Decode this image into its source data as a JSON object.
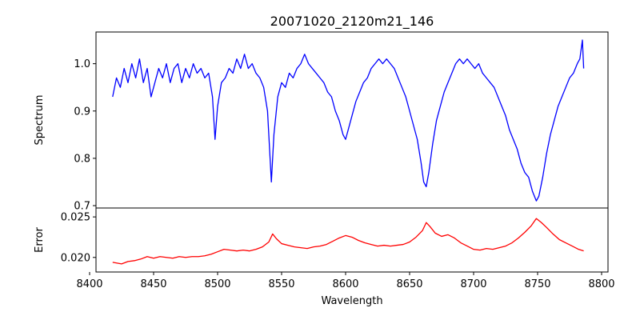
{
  "chart_data": {
    "type": "line",
    "title": "20071020_2120m21_146",
    "xlabel": "Wavelength",
    "xlim": [
      8405,
      8805
    ],
    "x_ticks": [
      8400,
      8450,
      8500,
      8550,
      8600,
      8650,
      8700,
      8750,
      8800
    ],
    "panels": [
      {
        "name": "spectrum-panel",
        "ylabel": "Spectrum",
        "ylim": [
          0.695,
          1.067
        ],
        "y_ticks": [
          0.7,
          0.8,
          0.9,
          1.0
        ],
        "y_tick_labels": [
          "0.7",
          "0.8",
          "0.9",
          "1.0"
        ],
        "series": [
          {
            "color": "#0000ff",
            "x_start": 8418,
            "x_end": 8786,
            "points": [
              [
                8418,
                0.93
              ],
              [
                8421,
                0.97
              ],
              [
                8424,
                0.95
              ],
              [
                8427,
                0.99
              ],
              [
                8430,
                0.96
              ],
              [
                8433,
                1.0
              ],
              [
                8436,
                0.97
              ],
              [
                8439,
                1.01
              ],
              [
                8442,
                0.96
              ],
              [
                8445,
                0.99
              ],
              [
                8448,
                0.93
              ],
              [
                8451,
                0.96
              ],
              [
                8454,
                0.99
              ],
              [
                8457,
                0.97
              ],
              [
                8460,
                1.0
              ],
              [
                8463,
                0.96
              ],
              [
                8466,
                0.99
              ],
              [
                8469,
                1.0
              ],
              [
                8472,
                0.96
              ],
              [
                8475,
                0.99
              ],
              [
                8478,
                0.97
              ],
              [
                8481,
                1.0
              ],
              [
                8484,
                0.98
              ],
              [
                8487,
                0.99
              ],
              [
                8490,
                0.97
              ],
              [
                8493,
                0.98
              ],
              [
                8496,
                0.93
              ],
              [
                8498,
                0.84
              ],
              [
                8500,
                0.91
              ],
              [
                8503,
                0.96
              ],
              [
                8506,
                0.97
              ],
              [
                8509,
                0.99
              ],
              [
                8512,
                0.98
              ],
              [
                8515,
                1.01
              ],
              [
                8518,
                0.99
              ],
              [
                8521,
                1.02
              ],
              [
                8524,
                0.99
              ],
              [
                8527,
                1.0
              ],
              [
                8530,
                0.98
              ],
              [
                8533,
                0.97
              ],
              [
                8536,
                0.95
              ],
              [
                8539,
                0.9
              ],
              [
                8541,
                0.8
              ],
              [
                8542,
                0.75
              ],
              [
                8544,
                0.85
              ],
              [
                8547,
                0.93
              ],
              [
                8550,
                0.96
              ],
              [
                8553,
                0.95
              ],
              [
                8556,
                0.98
              ],
              [
                8559,
                0.97
              ],
              [
                8562,
                0.99
              ],
              [
                8565,
                1.0
              ],
              [
                8568,
                1.02
              ],
              [
                8571,
                1.0
              ],
              [
                8574,
                0.99
              ],
              [
                8577,
                0.98
              ],
              [
                8580,
                0.97
              ],
              [
                8583,
                0.96
              ],
              [
                8586,
                0.94
              ],
              [
                8589,
                0.93
              ],
              [
                8592,
                0.9
              ],
              [
                8595,
                0.88
              ],
              [
                8598,
                0.85
              ],
              [
                8600,
                0.84
              ],
              [
                8602,
                0.86
              ],
              [
                8605,
                0.89
              ],
              [
                8608,
                0.92
              ],
              [
                8611,
                0.94
              ],
              [
                8614,
                0.96
              ],
              [
                8617,
                0.97
              ],
              [
                8620,
                0.99
              ],
              [
                8623,
                1.0
              ],
              [
                8626,
                1.01
              ],
              [
                8629,
                1.0
              ],
              [
                8632,
                1.01
              ],
              [
                8635,
                1.0
              ],
              [
                8638,
                0.99
              ],
              [
                8641,
                0.97
              ],
              [
                8644,
                0.95
              ],
              [
                8647,
                0.93
              ],
              [
                8650,
                0.9
              ],
              [
                8653,
                0.87
              ],
              [
                8656,
                0.84
              ],
              [
                8659,
                0.79
              ],
              [
                8661,
                0.75
              ],
              [
                8663,
                0.74
              ],
              [
                8665,
                0.77
              ],
              [
                8668,
                0.83
              ],
              [
                8671,
                0.88
              ],
              [
                8674,
                0.91
              ],
              [
                8677,
                0.94
              ],
              [
                8680,
                0.96
              ],
              [
                8683,
                0.98
              ],
              [
                8686,
                1.0
              ],
              [
                8689,
                1.01
              ],
              [
                8692,
                1.0
              ],
              [
                8695,
                1.01
              ],
              [
                8698,
                1.0
              ],
              [
                8701,
                0.99
              ],
              [
                8704,
                1.0
              ],
              [
                8707,
                0.98
              ],
              [
                8710,
                0.97
              ],
              [
                8713,
                0.96
              ],
              [
                8716,
                0.95
              ],
              [
                8719,
                0.93
              ],
              [
                8722,
                0.91
              ],
              [
                8725,
                0.89
              ],
              [
                8728,
                0.86
              ],
              [
                8731,
                0.84
              ],
              [
                8734,
                0.82
              ],
              [
                8737,
                0.79
              ],
              [
                8740,
                0.77
              ],
              [
                8743,
                0.76
              ],
              [
                8746,
                0.73
              ],
              [
                8749,
                0.71
              ],
              [
                8751,
                0.72
              ],
              [
                8754,
                0.76
              ],
              [
                8757,
                0.81
              ],
              [
                8760,
                0.85
              ],
              [
                8763,
                0.88
              ],
              [
                8766,
                0.91
              ],
              [
                8769,
                0.93
              ],
              [
                8772,
                0.95
              ],
              [
                8775,
                0.97
              ],
              [
                8778,
                0.98
              ],
              [
                8781,
                1.0
              ],
              [
                8783,
                1.01
              ],
              [
                8785,
                1.05
              ],
              [
                8786,
                0.99
              ]
            ]
          }
        ]
      },
      {
        "name": "error-panel",
        "ylabel": "Error",
        "ylim": [
          0.0182,
          0.0261
        ],
        "y_ticks": [
          0.02,
          0.025
        ],
        "y_tick_labels": [
          "0.020",
          "0.025"
        ],
        "series": [
          {
            "color": "#ff0000",
            "x_start": 8418,
            "x_end": 8786,
            "points": [
              [
                8418,
                0.0194
              ],
              [
                8425,
                0.0192
              ],
              [
                8430,
                0.0195
              ],
              [
                8435,
                0.0196
              ],
              [
                8440,
                0.0198
              ],
              [
                8445,
                0.0201
              ],
              [
                8450,
                0.0199
              ],
              [
                8455,
                0.0201
              ],
              [
                8460,
                0.02
              ],
              [
                8465,
                0.0199
              ],
              [
                8470,
                0.0201
              ],
              [
                8475,
                0.02
              ],
              [
                8480,
                0.0201
              ],
              [
                8485,
                0.0201
              ],
              [
                8490,
                0.0202
              ],
              [
                8495,
                0.0204
              ],
              [
                8500,
                0.0207
              ],
              [
                8505,
                0.021
              ],
              [
                8510,
                0.0209
              ],
              [
                8515,
                0.0208
              ],
              [
                8520,
                0.0209
              ],
              [
                8525,
                0.0208
              ],
              [
                8530,
                0.021
              ],
              [
                8535,
                0.0213
              ],
              [
                8540,
                0.0219
              ],
              [
                8543,
                0.0229
              ],
              [
                8546,
                0.0223
              ],
              [
                8550,
                0.0217
              ],
              [
                8555,
                0.0215
              ],
              [
                8560,
                0.0213
              ],
              [
                8565,
                0.0212
              ],
              [
                8570,
                0.0211
              ],
              [
                8575,
                0.0213
              ],
              [
                8580,
                0.0214
              ],
              [
                8585,
                0.0216
              ],
              [
                8590,
                0.022
              ],
              [
                8595,
                0.0224
              ],
              [
                8600,
                0.0227
              ],
              [
                8605,
                0.0225
              ],
              [
                8610,
                0.0221
              ],
              [
                8615,
                0.0218
              ],
              [
                8620,
                0.0216
              ],
              [
                8625,
                0.0214
              ],
              [
                8630,
                0.0215
              ],
              [
                8635,
                0.0214
              ],
              [
                8640,
                0.0215
              ],
              [
                8645,
                0.0216
              ],
              [
                8650,
                0.0219
              ],
              [
                8655,
                0.0225
              ],
              [
                8660,
                0.0233
              ],
              [
                8663,
                0.0243
              ],
              [
                8666,
                0.0238
              ],
              [
                8670,
                0.023
              ],
              [
                8675,
                0.0226
              ],
              [
                8680,
                0.0228
              ],
              [
                8685,
                0.0224
              ],
              [
                8690,
                0.0218
              ],
              [
                8695,
                0.0214
              ],
              [
                8700,
                0.021
              ],
              [
                8705,
                0.0209
              ],
              [
                8710,
                0.0211
              ],
              [
                8715,
                0.021
              ],
              [
                8720,
                0.0212
              ],
              [
                8725,
                0.0214
              ],
              [
                8730,
                0.0218
              ],
              [
                8735,
                0.0224
              ],
              [
                8740,
                0.0231
              ],
              [
                8745,
                0.0239
              ],
              [
                8749,
                0.0248
              ],
              [
                8753,
                0.0243
              ],
              [
                8757,
                0.0237
              ],
              [
                8762,
                0.0229
              ],
              [
                8767,
                0.0222
              ],
              [
                8772,
                0.0218
              ],
              [
                8777,
                0.0214
              ],
              [
                8782,
                0.021
              ],
              [
                8786,
                0.0208
              ]
            ]
          }
        ]
      }
    ]
  }
}
